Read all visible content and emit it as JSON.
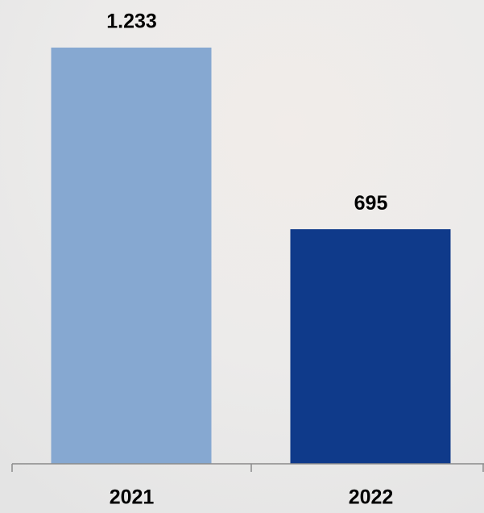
{
  "chart_data": {
    "type": "bar",
    "categories": [
      "2021",
      "2022"
    ],
    "values": [
      1233,
      695
    ],
    "value_labels": [
      "1.233",
      "695"
    ],
    "colors": [
      "#86a8d1",
      "#0f3a8a"
    ]
  }
}
